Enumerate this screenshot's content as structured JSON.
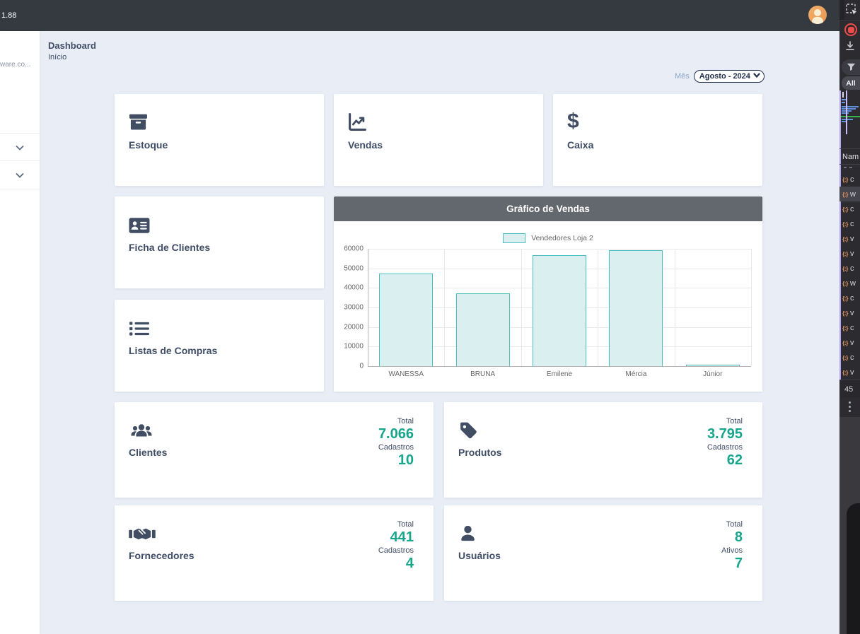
{
  "topbar": {
    "version_text": "1.88"
  },
  "sidebar": {
    "brand": "ware.co..."
  },
  "page": {
    "title": "Dashboard",
    "subtitle": "Início"
  },
  "month_filter": {
    "label": "Mês",
    "selected": "Agosto - 2024"
  },
  "nav_cards": [
    {
      "icon": "box-icon",
      "label": "Estoque"
    },
    {
      "icon": "chart-line-icon",
      "label": "Vendas"
    },
    {
      "icon": "dollar-icon",
      "glyph": "$",
      "label": "Caixa"
    },
    {
      "icon": "address-card-icon",
      "label": "Ficha de Clientes"
    },
    {
      "icon": "list-icon",
      "label": "Listas de Compras"
    }
  ],
  "chart_panel": {
    "title": "Gráfico de Vendas"
  },
  "chart_data": {
    "type": "bar",
    "title": "Gráfico de Vendas",
    "categories": [
      "WANESSA",
      "BRUNA",
      "Emilene",
      "Mércia",
      "Júnior"
    ],
    "series": [
      {
        "name": "Vendedores Loja 2",
        "values": [
          47300,
          37300,
          56700,
          59200,
          700
        ]
      }
    ],
    "xlabel": "",
    "ylabel": "",
    "ylim": [
      0,
      60000
    ],
    "yticks": [
      0,
      10000,
      20000,
      30000,
      40000,
      50000,
      60000
    ],
    "grid": true,
    "legend_position": "top",
    "bar_fill": "#d9eff0",
    "bar_border": "#4bc0c0"
  },
  "stat_cards": [
    {
      "icon": "users-icon",
      "label": "Clientes",
      "stats": [
        {
          "label": "Total",
          "value": "7.066"
        },
        {
          "label": "Cadastros",
          "value": "10"
        }
      ]
    },
    {
      "icon": "tag-icon",
      "label": "Produtos",
      "stats": [
        {
          "label": "Total",
          "value": "3.795"
        },
        {
          "label": "Cadastros",
          "value": "62"
        }
      ]
    },
    {
      "icon": "handshake-icon",
      "label": "Fornecedores",
      "stats": [
        {
          "label": "Total",
          "value": "441"
        },
        {
          "label": "Cadastros",
          "value": "4"
        }
      ]
    },
    {
      "icon": "user-icon",
      "label": "Usuários",
      "stats": [
        {
          "label": "Total",
          "value": "8"
        },
        {
          "label": "Ativos",
          "value": "7"
        }
      ]
    }
  ],
  "devtools": {
    "toolbar": {
      "all_filter_label": "All"
    },
    "network": {
      "name_column_header": "Nam",
      "json_icon_glyph": "{:}",
      "requests": [
        "c",
        "w",
        "c",
        "c",
        "v",
        "v",
        "c",
        "w",
        "c",
        "v",
        "c",
        "v",
        "c",
        "v"
      ],
      "selected_row_index": 1,
      "request_count": "45"
    }
  },
  "colors": {
    "topbar": "#343a40",
    "page_bg": "#e9eef6",
    "accent_teal": "#17a68b",
    "chart_header": "#63686e",
    "bar_fill": "#d9eff0",
    "bar_border": "#4bc0c0",
    "text_slate": "#3f4d67"
  }
}
